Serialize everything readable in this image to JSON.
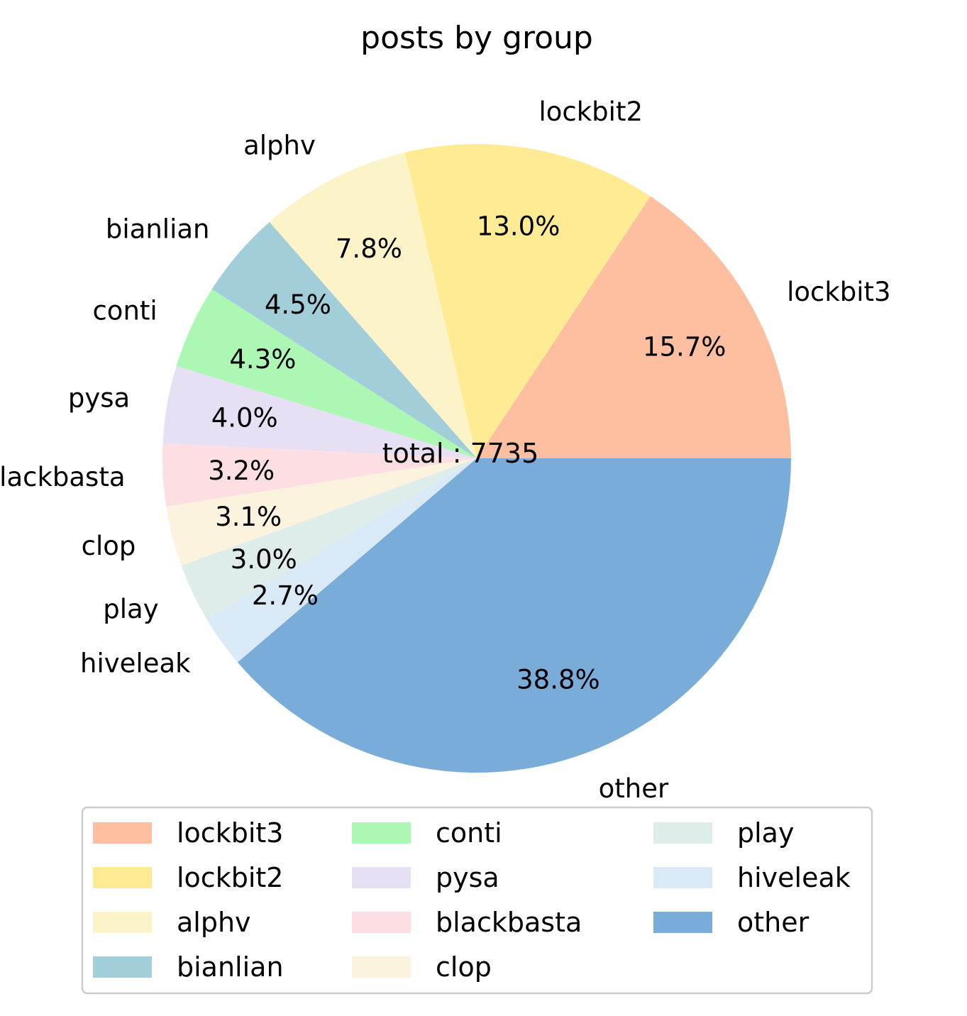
{
  "chart_data": {
    "type": "pie",
    "title": "posts by group",
    "center_label": "total : 7735",
    "start_angle_deg": 0,
    "direction": "counterclockwise",
    "slices": [
      {
        "label": "lockbit3",
        "percent": 15.7,
        "pct_text": "15.7%",
        "color": "#fdbf9f"
      },
      {
        "label": "lockbit2",
        "percent": 13.0,
        "pct_text": "13.0%",
        "color": "#ffeb94"
      },
      {
        "label": "alphv",
        "percent": 7.8,
        "pct_text": "7.8%",
        "color": "#fcf4c8"
      },
      {
        "label": "bianlian",
        "percent": 4.5,
        "pct_text": "4.5%",
        "color": "#a2ced9"
      },
      {
        "label": "conti",
        "percent": 4.3,
        "pct_text": "4.3%",
        "color": "#adf7b5"
      },
      {
        "label": "pysa",
        "percent": 4.0,
        "pct_text": "4.0%",
        "color": "#e7dff4"
      },
      {
        "label": "blackbasta",
        "percent": 3.2,
        "pct_text": "3.2%",
        "color": "#fddfe3"
      },
      {
        "label": "clop",
        "percent": 3.1,
        "pct_text": "3.1%",
        "color": "#fcf3df"
      },
      {
        "label": "play",
        "percent": 3.0,
        "pct_text": "3.0%",
        "color": "#deede9"
      },
      {
        "label": "hiveleak",
        "percent": 2.7,
        "pct_text": "2.7%",
        "color": "#dae9f6"
      },
      {
        "label": "other",
        "percent": 38.8,
        "pct_text": "38.8%",
        "color": "#7aacda"
      }
    ],
    "legend": {
      "placement": "bottom",
      "columns": 3,
      "items": [
        "lockbit3",
        "lockbit2",
        "alphv",
        "bianlian",
        "conti",
        "pysa",
        "blackbasta",
        "clop",
        "play",
        "hiveleak",
        "other"
      ]
    }
  }
}
